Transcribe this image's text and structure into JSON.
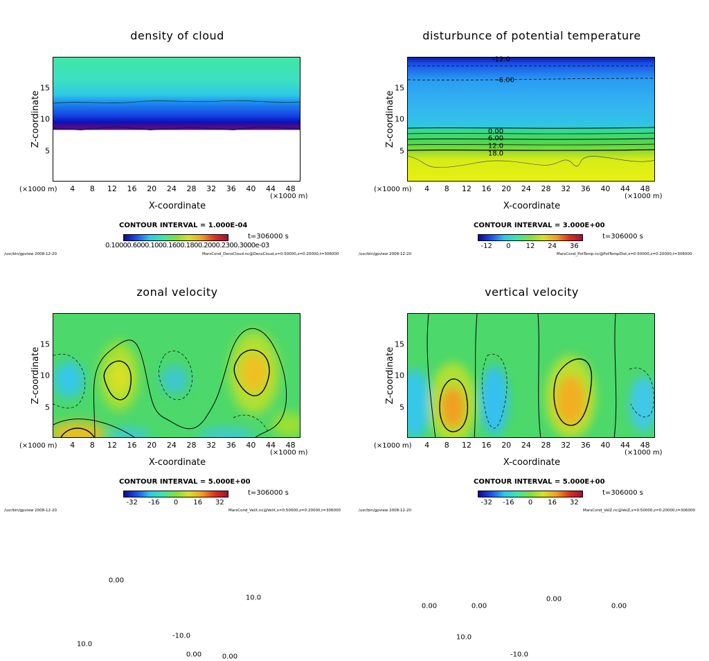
{
  "panels": [
    {
      "title": "density of cloud",
      "ylabel": "Z-coordinate",
      "xlabel": "X-coordinate",
      "x_unit_left": "(×1000 m)",
      "x_unit_right": "(×1000 m)",
      "xticks": [
        "4",
        "8",
        "12",
        "16",
        "20",
        "24",
        "28",
        "32",
        "36",
        "40",
        "44",
        "48"
      ],
      "yticks": [
        "5",
        "10",
        "15"
      ],
      "contour_interval": "CONTOUR INTERVAL = 1.000E-04",
      "time": "t=306000 s",
      "colorbar_label": "0.10000.6000.1000.1600.1800.2000.2300.3000e-03",
      "footer_left": "/usr/bin/gpview  2008-12-20",
      "footer_right": "MarsCond_DensCloud.nc@DensCloud,x=0:50000,z=0:20000,t=306000",
      "contour_labels": []
    },
    {
      "title": "disturbunce of potential temperature",
      "ylabel": "Z-coordinate",
      "xlabel": "X-coordinate",
      "x_unit_left": "(×1000 m)",
      "x_unit_right": "(×1000 m)",
      "xticks": [
        "4",
        "8",
        "12",
        "16",
        "20",
        "24",
        "28",
        "32",
        "36",
        "40",
        "44",
        "48"
      ],
      "yticks": [
        "5",
        "10",
        "15"
      ],
      "contour_interval": "CONTOUR INTERVAL = 3.000E+00",
      "time": "t=306000 s",
      "colorbar_ticks": [
        "-12",
        "0",
        "12",
        "24",
        "36"
      ],
      "footer_left": "/usr/bin/gpview  2008-12-20",
      "footer_right": "MarsCond_PotTemp.nc@PotTempDist,x=0:50000,z=0:20000,t=306000",
      "contour_labels": [
        "-12.0",
        "-6.00",
        "0.00",
        "6.00",
        "12.0",
        "18.0"
      ]
    },
    {
      "title": "zonal velocity",
      "ylabel": "Z-coordinate",
      "xlabel": "X-coordinate",
      "x_unit_left": "(×1000 m)",
      "x_unit_right": "(×1000 m)",
      "xticks": [
        "4",
        "8",
        "12",
        "16",
        "20",
        "24",
        "28",
        "32",
        "36",
        "40",
        "44",
        "48"
      ],
      "yticks": [
        "5",
        "10",
        "15"
      ],
      "contour_interval": "CONTOUR INTERVAL = 5.000E+00",
      "time": "t=306000 s",
      "colorbar_ticks": [
        "-32",
        "-16",
        "0",
        "16",
        "32"
      ],
      "footer_left": "/usr/bin/gpview  2008-12-20",
      "footer_right": "MarsCond_VelX.nc@VelX,x=0:50000,z=0:20000,t=306000",
      "contour_labels": [
        "0.00",
        "10.0",
        "-10.0",
        "0.00",
        "0.00",
        "10.0"
      ]
    },
    {
      "title": "vertical velocity",
      "ylabel": "Z-coordinate",
      "xlabel": "X-coordinate",
      "x_unit_left": "(×1000 m)",
      "x_unit_right": "(×1000 m)",
      "xticks": [
        "4",
        "8",
        "12",
        "16",
        "20",
        "24",
        "28",
        "32",
        "36",
        "40",
        "44",
        "48"
      ],
      "yticks": [
        "5",
        "10",
        "15"
      ],
      "contour_interval": "CONTOUR INTERVAL = 5.000E+00",
      "time": "t=306000 s",
      "colorbar_ticks": [
        "-32",
        "-16",
        "0",
        "16",
        "32"
      ],
      "footer_left": "/usr/bin/gpview  2008-12-20",
      "footer_right": "MarsCond_VelZ.nc@VelZ,x=0:50000,z=0:20000,t=306000",
      "contour_labels": [
        "0.00",
        "0.00",
        "10.0",
        "-10.0",
        "0.00",
        "0.00"
      ]
    }
  ],
  "chart_data": [
    {
      "type": "heatmap",
      "title": "density of cloud",
      "xlabel": "X-coordinate",
      "ylabel": "Z-coordinate",
      "xlim": [
        0,
        50
      ],
      "ylim": [
        0,
        20
      ],
      "x_unit": "×1000 m",
      "contour_interval": 0.0001,
      "cloud_base_z": 8.5,
      "cloud_top_z": 12.8,
      "time_s": 306000
    },
    {
      "type": "heatmap",
      "title": "disturbunce of potential temperature",
      "xlabel": "X-coordinate",
      "ylabel": "Z-coordinate",
      "xlim": [
        0,
        50
      ],
      "ylim": [
        0,
        20
      ],
      "contour_interval": 3.0,
      "colorbar_range": [
        -12,
        36
      ],
      "contour_levels": [
        {
          "value": -12.0,
          "z": 19.4
        },
        {
          "value": -6.0,
          "z": 16.4
        },
        {
          "value": 0.0,
          "z": 8.6
        },
        {
          "value": 6.0,
          "z": 7.4
        },
        {
          "value": 12.0,
          "z": 6.3
        },
        {
          "value": 18.0,
          "z": 5.1
        }
      ],
      "time_s": 306000
    },
    {
      "type": "heatmap",
      "title": "zonal velocity",
      "xlabel": "X-coordinate",
      "ylabel": "Z-coordinate",
      "xlim": [
        0,
        50
      ],
      "ylim": [
        0,
        20
      ],
      "contour_interval": 5.0,
      "colorbar_range": [
        -32,
        32
      ],
      "extrema": [
        {
          "x": 4,
          "z": 9,
          "value": -15
        },
        {
          "x": 14,
          "z": 9.5,
          "value": 20
        },
        {
          "x": 23,
          "z": 9,
          "value": -10
        },
        {
          "x": 40,
          "z": 10.5,
          "value": 22
        },
        {
          "x": 6,
          "z": 1,
          "value": 28
        }
      ],
      "time_s": 306000
    },
    {
      "type": "heatmap",
      "title": "vertical velocity",
      "xlabel": "X-coordinate",
      "ylabel": "Z-coordinate",
      "xlim": [
        0,
        50
      ],
      "ylim": [
        0,
        20
      ],
      "contour_interval": 5.0,
      "colorbar_range": [
        -32,
        32
      ],
      "extrema": [
        {
          "x": 9,
          "z": 5,
          "value": 28
        },
        {
          "x": 18,
          "z": 6,
          "value": -15
        },
        {
          "x": 34,
          "z": 7,
          "value": 24
        },
        {
          "x": 48,
          "z": 5,
          "value": -10
        }
      ],
      "time_s": 306000
    }
  ]
}
